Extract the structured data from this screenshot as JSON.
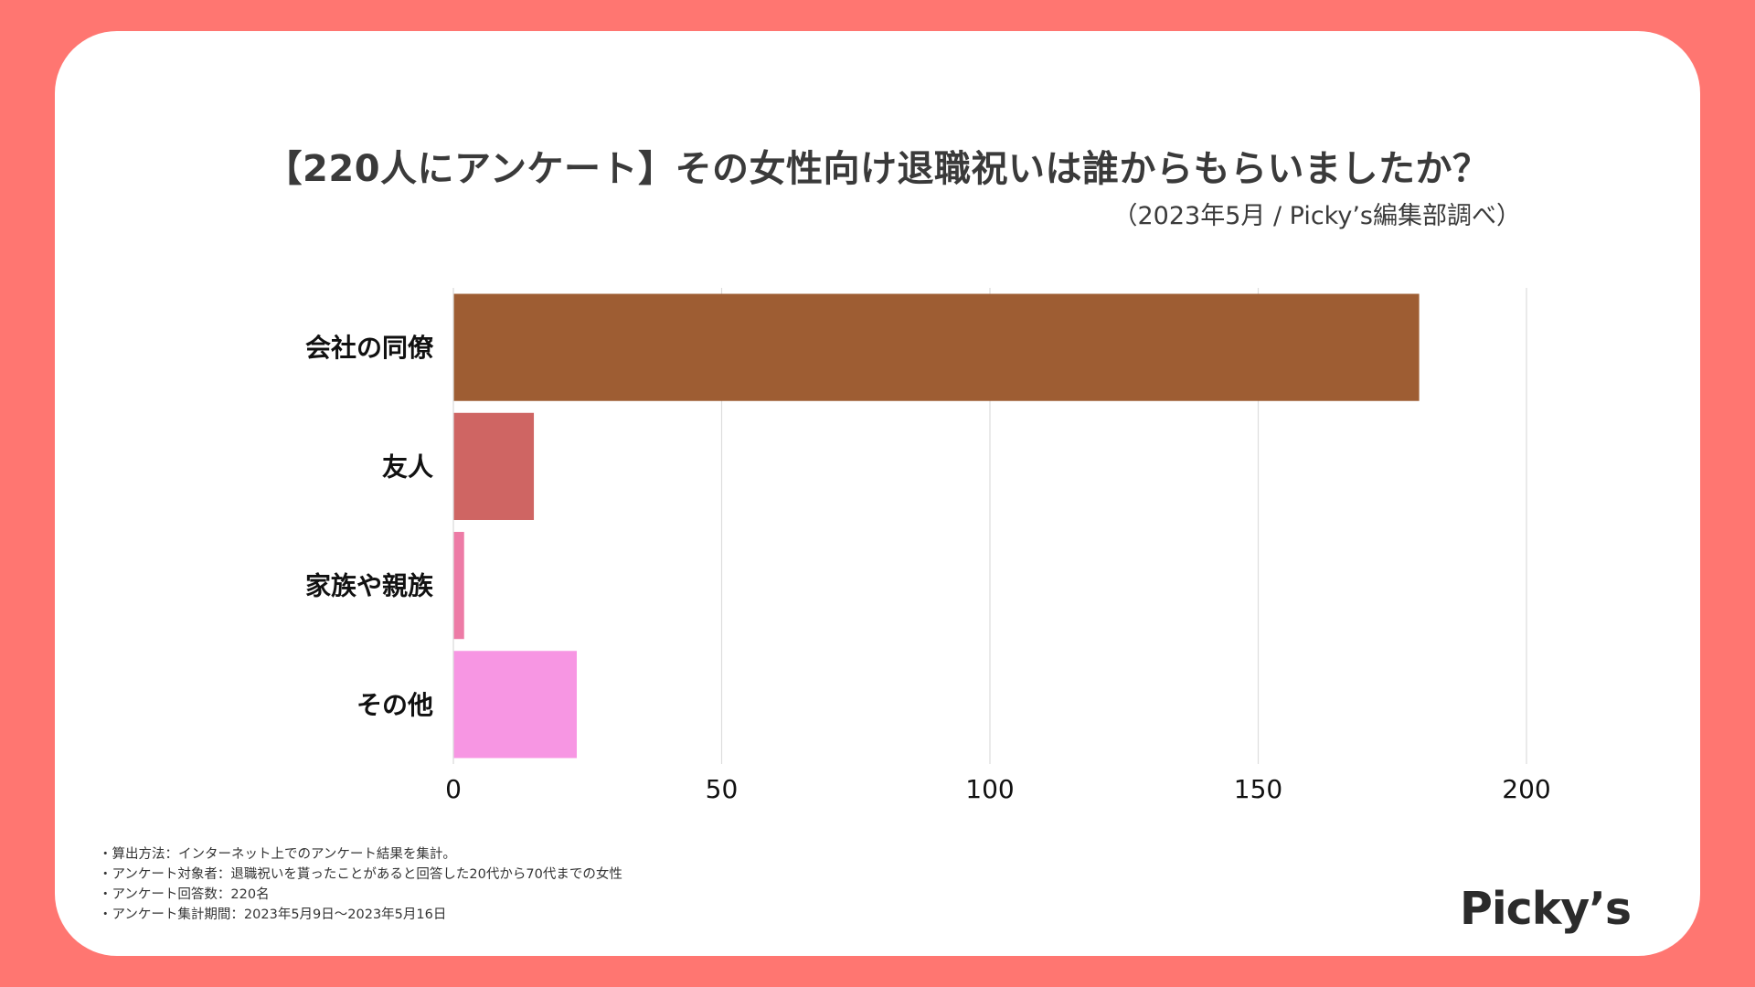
{
  "title": "【220人にアンケート】その女性向け退職祝いは誰からもらいましたか？",
  "subtitle": "（2023年5月 / Picky’s編集部調べ）",
  "chart_data": {
    "type": "bar",
    "orientation": "horizontal",
    "categories": [
      "会社の同僚",
      "友人",
      "家族や親族",
      "その他"
    ],
    "values": [
      180,
      15,
      2,
      23
    ],
    "colors": [
      "#9E5D33",
      "#CF6563",
      "#ED7BA6",
      "#F796E3"
    ],
    "xlim": [
      0,
      200
    ],
    "xticks": [
      0,
      50,
      100,
      150,
      200
    ],
    "grid": true
  },
  "notes": [
    "・算出方法：インターネット上でのアンケート結果を集計。",
    "・アンケート対象者：退職祝いを貰ったことがあると回答した20代から70代までの女性",
    "・アンケート回答数：220名",
    "・アンケート集計期間：2023年5月9日〜2023年5月16日"
  ],
  "brand": "Picky’s",
  "colors": {
    "frame": "#FF7671",
    "card": "#FFFFFF",
    "grid": "#DDDDDD"
  }
}
